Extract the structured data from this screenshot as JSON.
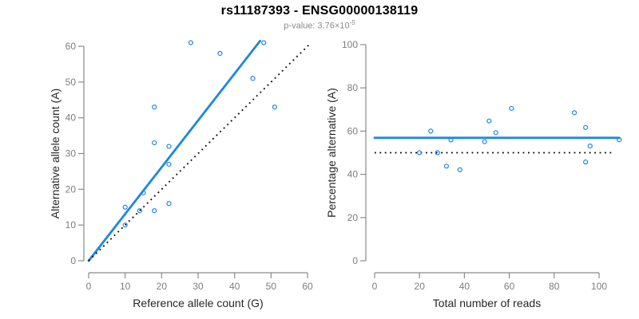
{
  "title": "rs11187393 - ENSG00000138119",
  "subtitle": {
    "prefix": "p-value: 3.76×10",
    "exponent": "-5"
  },
  "colors": {
    "fit_line_blue": "#1e86e5",
    "point_blue": "#1e86e5",
    "reference_dotted_black": "#000000",
    "axis_gray": "#8a8a8a",
    "tick_label_gray": "#7d7d7d",
    "axis_title_dark": "#262626",
    "subtitle_gray": "#8a8a8a",
    "background": "#ffffff"
  },
  "chart_data": [
    {
      "type": "scatter",
      "name": "allele-counts-panel",
      "xlabel": "Reference allele count (G)",
      "ylabel": "Alternative allele count (A)",
      "xlim": [
        0,
        60
      ],
      "ylim": [
        0,
        60
      ],
      "xticks": [
        0,
        10,
        20,
        30,
        40,
        50,
        60
      ],
      "yticks": [
        0,
        10,
        20,
        30,
        40,
        50,
        60
      ],
      "grid": false,
      "legend": "none",
      "points": [
        {
          "x": 10,
          "y": 10
        },
        {
          "x": 10,
          "y": 15
        },
        {
          "x": 14,
          "y": 14
        },
        {
          "x": 15,
          "y": 19
        },
        {
          "x": 18,
          "y": 14
        },
        {
          "x": 18,
          "y": 33
        },
        {
          "x": 18,
          "y": 43
        },
        {
          "x": 22,
          "y": 16
        },
        {
          "x": 22,
          "y": 27
        },
        {
          "x": 22,
          "y": 32
        },
        {
          "x": 28,
          "y": 61
        },
        {
          "x": 36,
          "y": 58
        },
        {
          "x": 45,
          "y": 51
        },
        {
          "x": 48,
          "y": 61
        },
        {
          "x": 51,
          "y": 43
        }
      ],
      "lines": [
        {
          "name": "fit-line",
          "style": "solid",
          "color_key": "fit_line_blue",
          "x1": 0,
          "y1": 0,
          "x2": 47,
          "y2": 61.5
        },
        {
          "name": "identity-line",
          "style": "dotted",
          "color_key": "reference_dotted_black",
          "x1": 0,
          "y1": 0,
          "x2": 60.6,
          "y2": 60.6
        }
      ]
    },
    {
      "type": "scatter",
      "name": "percentage-panel",
      "xlabel": "Total number of reads",
      "ylabel": "Percentage alternative (A)",
      "xlim": [
        0,
        109
      ],
      "ylim": [
        0,
        100
      ],
      "xticks": [
        0,
        20,
        40,
        60,
        80,
        100
      ],
      "yticks": [
        0,
        20,
        40,
        60,
        80,
        100
      ],
      "grid": false,
      "legend": "none",
      "points": [
        {
          "x": 20,
          "y": 50
        },
        {
          "x": 25,
          "y": 60
        },
        {
          "x": 28,
          "y": 50
        },
        {
          "x": 32,
          "y": 43.8
        },
        {
          "x": 34,
          "y": 55.9
        },
        {
          "x": 38,
          "y": 42.1
        },
        {
          "x": 49,
          "y": 55.1
        },
        {
          "x": 51,
          "y": 64.7
        },
        {
          "x": 54,
          "y": 59.3
        },
        {
          "x": 61,
          "y": 70.5
        },
        {
          "x": 89,
          "y": 68.5
        },
        {
          "x": 94,
          "y": 61.7
        },
        {
          "x": 94,
          "y": 45.7
        },
        {
          "x": 96,
          "y": 53.1
        },
        {
          "x": 109,
          "y": 56
        }
      ],
      "lines": [
        {
          "name": "fit-line",
          "style": "solid",
          "color_key": "fit_line_blue",
          "x1": 0,
          "y1": 56.9,
          "x2": 109,
          "y2": 56.9
        },
        {
          "name": "null-line",
          "style": "dotted",
          "color_key": "reference_dotted_black",
          "x1": 0,
          "y1": 50,
          "x2": 107,
          "y2": 50
        }
      ]
    }
  ]
}
